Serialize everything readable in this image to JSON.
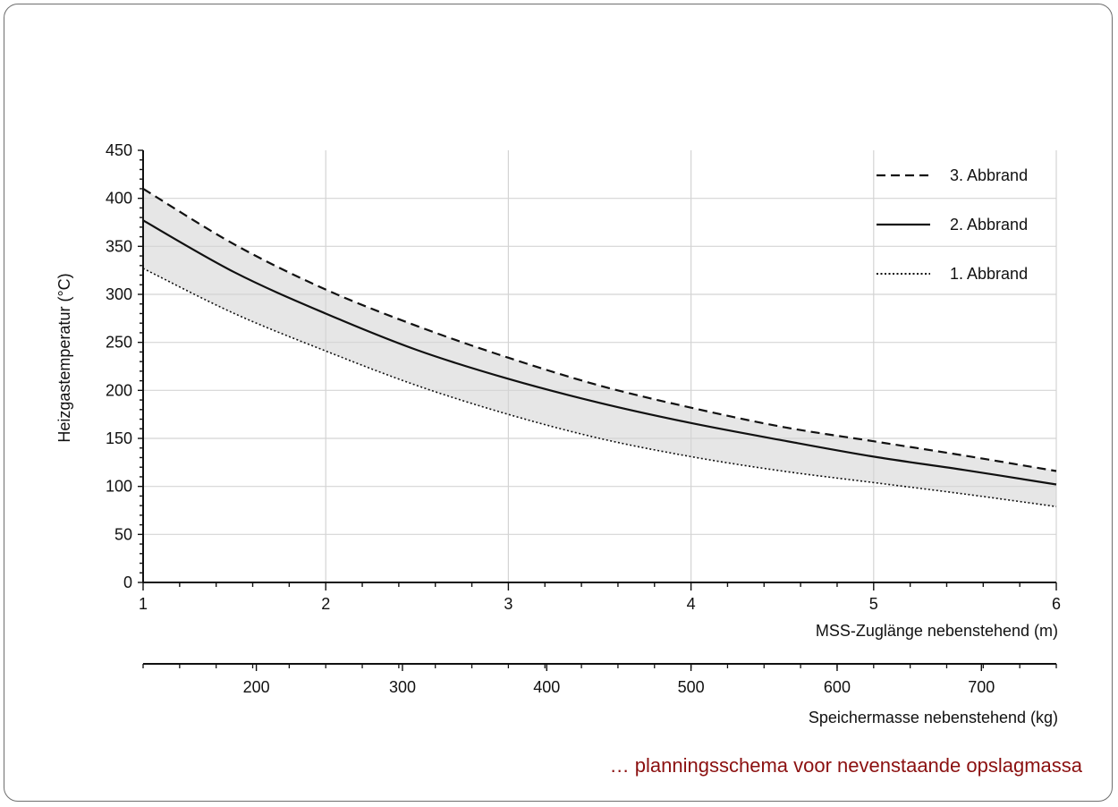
{
  "caption": "… planningsschema voor nevenstaande opslagmassa",
  "chart_data": {
    "type": "line",
    "ylabel": "Heizgastemperatur (°C)",
    "xlabel": "MSS-Zuglänge nebenstehend (m)",
    "x2label": "Speichermasse nebenstehend (kg)",
    "xlim": [
      1,
      6
    ],
    "ylim": [
      0,
      450
    ],
    "x_ticks": [
      1,
      2,
      3,
      4,
      5,
      6
    ],
    "y_ticks": [
      0,
      50,
      100,
      150,
      200,
      250,
      300,
      350,
      400,
      450
    ],
    "x2_ticks": [
      {
        "label": "200",
        "x": 1.62
      },
      {
        "label": "300",
        "x": 2.42
      },
      {
        "label": "400",
        "x": 3.21
      },
      {
        "label": "500",
        "x": 4.0
      },
      {
        "label": "600",
        "x": 4.8
      },
      {
        "label": "700",
        "x": 5.59
      }
    ],
    "grid": true,
    "legend_position": "top-right",
    "shaded_band": {
      "between": [
        "1. Abbrand",
        "3. Abbrand"
      ],
      "color": "#e6e6e6"
    },
    "series": [
      {
        "name": "3. Abbrand",
        "style": "dashed",
        "x": [
          1,
          1.5,
          2,
          2.5,
          3,
          3.5,
          4,
          4.5,
          5,
          5.5,
          6
        ],
        "y": [
          410,
          352,
          305,
          267,
          234,
          205,
          182,
          162,
          147,
          132,
          116
        ]
      },
      {
        "name": "2. Abbrand",
        "style": "solid",
        "x": [
          1,
          1.5,
          2,
          2.5,
          3,
          3.5,
          4,
          4.5,
          5,
          5.5,
          6
        ],
        "y": [
          377,
          323,
          280,
          242,
          212,
          187,
          166,
          148,
          131,
          117,
          102
        ]
      },
      {
        "name": "1. Abbrand",
        "style": "dotted",
        "x": [
          1,
          1.5,
          2,
          2.5,
          3,
          3.5,
          4,
          4.5,
          5,
          5.5,
          6
        ],
        "y": [
          327,
          280,
          241,
          205,
          175,
          150,
          131,
          116,
          104,
          92,
          79
        ]
      }
    ]
  }
}
